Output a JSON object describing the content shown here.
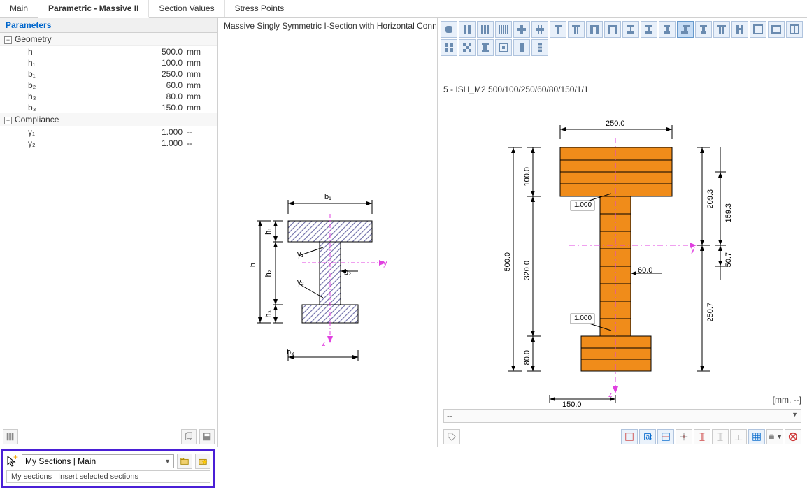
{
  "tabs": [
    "Main",
    "Parametric - Massive II",
    "Section Values",
    "Stress Points"
  ],
  "active_tab": 1,
  "parameters_header": "Parameters",
  "groups": {
    "geometry": {
      "label": "Geometry",
      "rows": [
        {
          "name": "h",
          "val": "500.0",
          "unit": "mm"
        },
        {
          "name": "h₁",
          "val": "100.0",
          "unit": "mm"
        },
        {
          "name": "b₁",
          "val": "250.0",
          "unit": "mm"
        },
        {
          "name": "b₂",
          "val": "60.0",
          "unit": "mm"
        },
        {
          "name": "h₃",
          "val": "80.0",
          "unit": "mm"
        },
        {
          "name": "b₃",
          "val": "150.0",
          "unit": "mm"
        }
      ]
    },
    "compliance": {
      "label": "Compliance",
      "rows": [
        {
          "name": "γ₁",
          "val": "1.000",
          "unit": "--"
        },
        {
          "name": "γ₂",
          "val": "1.000",
          "unit": "--"
        }
      ]
    }
  },
  "mid_title": "Massive Singly Symmetric I-Section with Horizontal Connec",
  "section_name": "5 - ISH_M2 500/100/250/60/80/150/1/1",
  "my_sections": {
    "combo_text": "My Sections | Main",
    "tooltip": "My sections | Insert selected sections"
  },
  "right_combo": "--",
  "right_unit": "[mm, --]",
  "schematic": {
    "labels": {
      "b1": "b₁",
      "h1": "h₁",
      "h": "h",
      "h2": "h₂",
      "h3": "h₃",
      "b3": "b₃",
      "b2": "b₂",
      "y": "y",
      "z": "z",
      "g1": "γ₁",
      "g2": "γ₂"
    },
    "hatch_color": "#7a7ab0",
    "outline": "#000000"
  },
  "rendered": {
    "fill": "#f08c1a",
    "stroke": "#000000",
    "dims": {
      "b1": "250.0",
      "h1": "100.0",
      "h": "500.0",
      "h2": "320.0",
      "h3": "80.0",
      "b3": "150.0",
      "b2": "60.0",
      "g1": "1.000",
      "g2": "1.000",
      "r_top": "209.3",
      "r_mid_up": "159.3",
      "r_mid_dn": "50.7",
      "r_bot": "250.7"
    },
    "axis_color": "#e040e0"
  },
  "shape_toolbar": {
    "count_row1": 20,
    "count_row2": 6,
    "active_index": 13
  }
}
